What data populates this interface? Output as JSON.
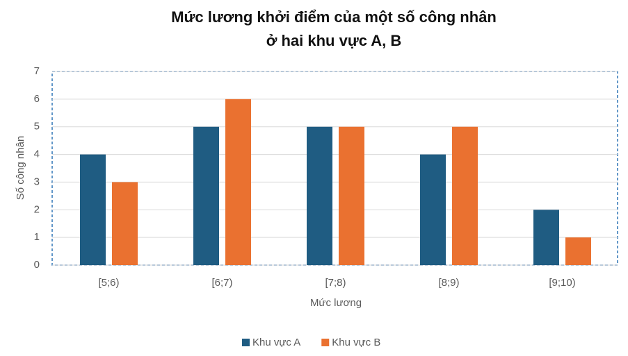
{
  "chart_data": {
    "type": "bar",
    "title": [
      "Mức lương khởi điểm của một số công nhân",
      "ở hai khu vực A, B"
    ],
    "x_label": "Mức lương",
    "y_label": "Số công nhân",
    "categories": [
      "[5;6)",
      "[6;7)",
      "[7;8)",
      "[8;9)",
      "[9;10)"
    ],
    "series": [
      {
        "name": "Khu vực A",
        "color": "#1f5c82",
        "values": [
          4,
          5,
          5,
          4,
          2
        ]
      },
      {
        "name": "Khu vực B",
        "color": "#ea7130",
        "values": [
          3,
          6,
          5,
          5,
          1
        ]
      }
    ],
    "ylim": [
      0,
      7
    ],
    "yticks": [
      0,
      1,
      2,
      3,
      4,
      5,
      6,
      7
    ],
    "grid": true,
    "legend": "bottom"
  }
}
